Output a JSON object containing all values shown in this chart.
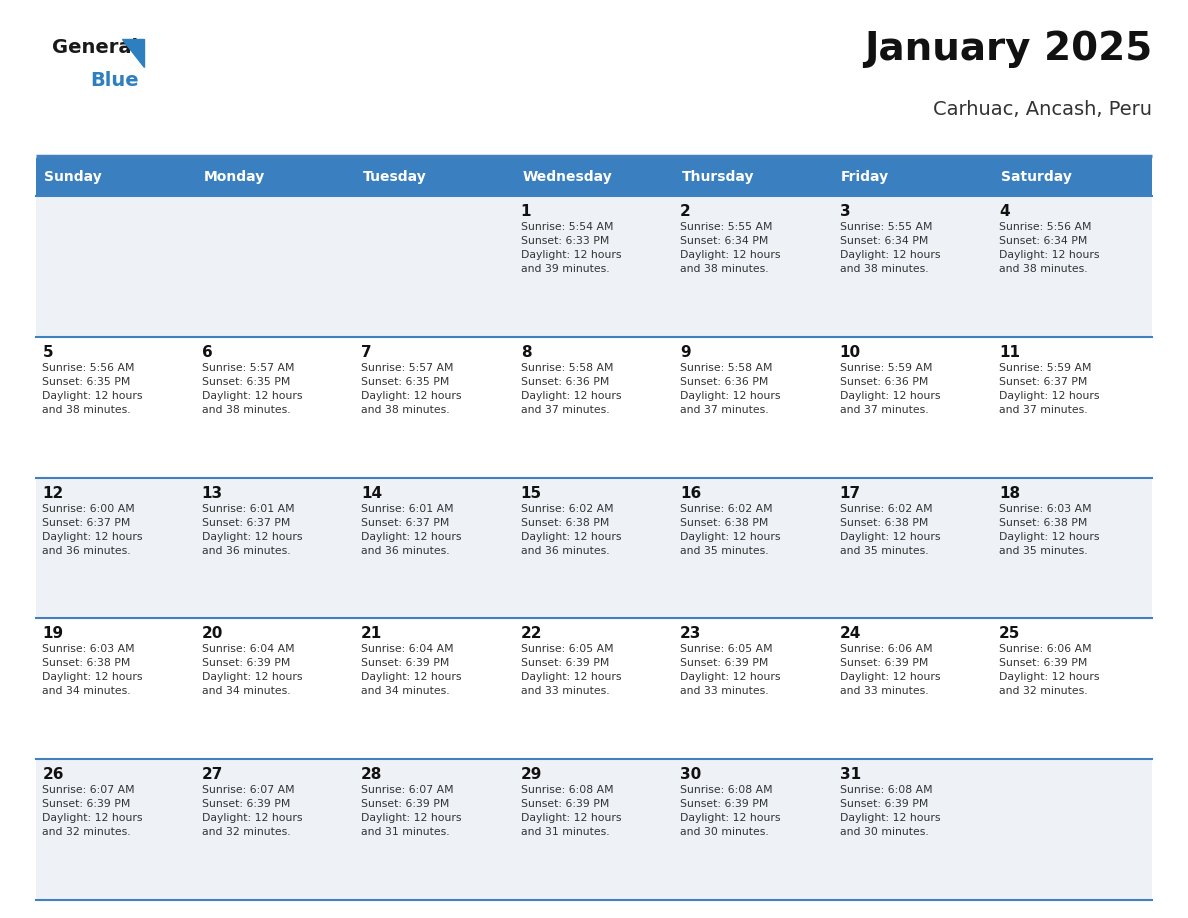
{
  "title": "January 2025",
  "subtitle": "Carhuac, Ancash, Peru",
  "days_of_week": [
    "Sunday",
    "Monday",
    "Tuesday",
    "Wednesday",
    "Thursday",
    "Friday",
    "Saturday"
  ],
  "header_bg": "#3a7fbf",
  "header_text": "#ffffff",
  "row_bg_odd": "#eef2f7",
  "row_bg_even": "#ffffff",
  "divider_color": "#4080bf",
  "cell_text_color": "#333333",
  "day_num_color": "#111111",
  "title_color": "#111111",
  "subtitle_color": "#333333",
  "logo_black": "#1a1a1a",
  "logo_blue": "#2e7fbf",
  "calendar_data": [
    [
      "",
      "",
      "",
      "1\nSunrise: 5:54 AM\nSunset: 6:33 PM\nDaylight: 12 hours\nand 39 minutes.",
      "2\nSunrise: 5:55 AM\nSunset: 6:34 PM\nDaylight: 12 hours\nand 38 minutes.",
      "3\nSunrise: 5:55 AM\nSunset: 6:34 PM\nDaylight: 12 hours\nand 38 minutes.",
      "4\nSunrise: 5:56 AM\nSunset: 6:34 PM\nDaylight: 12 hours\nand 38 minutes."
    ],
    [
      "5\nSunrise: 5:56 AM\nSunset: 6:35 PM\nDaylight: 12 hours\nand 38 minutes.",
      "6\nSunrise: 5:57 AM\nSunset: 6:35 PM\nDaylight: 12 hours\nand 38 minutes.",
      "7\nSunrise: 5:57 AM\nSunset: 6:35 PM\nDaylight: 12 hours\nand 38 minutes.",
      "8\nSunrise: 5:58 AM\nSunset: 6:36 PM\nDaylight: 12 hours\nand 37 minutes.",
      "9\nSunrise: 5:58 AM\nSunset: 6:36 PM\nDaylight: 12 hours\nand 37 minutes.",
      "10\nSunrise: 5:59 AM\nSunset: 6:36 PM\nDaylight: 12 hours\nand 37 minutes.",
      "11\nSunrise: 5:59 AM\nSunset: 6:37 PM\nDaylight: 12 hours\nand 37 minutes."
    ],
    [
      "12\nSunrise: 6:00 AM\nSunset: 6:37 PM\nDaylight: 12 hours\nand 36 minutes.",
      "13\nSunrise: 6:01 AM\nSunset: 6:37 PM\nDaylight: 12 hours\nand 36 minutes.",
      "14\nSunrise: 6:01 AM\nSunset: 6:37 PM\nDaylight: 12 hours\nand 36 minutes.",
      "15\nSunrise: 6:02 AM\nSunset: 6:38 PM\nDaylight: 12 hours\nand 36 minutes.",
      "16\nSunrise: 6:02 AM\nSunset: 6:38 PM\nDaylight: 12 hours\nand 35 minutes.",
      "17\nSunrise: 6:02 AM\nSunset: 6:38 PM\nDaylight: 12 hours\nand 35 minutes.",
      "18\nSunrise: 6:03 AM\nSunset: 6:38 PM\nDaylight: 12 hours\nand 35 minutes."
    ],
    [
      "19\nSunrise: 6:03 AM\nSunset: 6:38 PM\nDaylight: 12 hours\nand 34 minutes.",
      "20\nSunrise: 6:04 AM\nSunset: 6:39 PM\nDaylight: 12 hours\nand 34 minutes.",
      "21\nSunrise: 6:04 AM\nSunset: 6:39 PM\nDaylight: 12 hours\nand 34 minutes.",
      "22\nSunrise: 6:05 AM\nSunset: 6:39 PM\nDaylight: 12 hours\nand 33 minutes.",
      "23\nSunrise: 6:05 AM\nSunset: 6:39 PM\nDaylight: 12 hours\nand 33 minutes.",
      "24\nSunrise: 6:06 AM\nSunset: 6:39 PM\nDaylight: 12 hours\nand 33 minutes.",
      "25\nSunrise: 6:06 AM\nSunset: 6:39 PM\nDaylight: 12 hours\nand 32 minutes."
    ],
    [
      "26\nSunrise: 6:07 AM\nSunset: 6:39 PM\nDaylight: 12 hours\nand 32 minutes.",
      "27\nSunrise: 6:07 AM\nSunset: 6:39 PM\nDaylight: 12 hours\nand 32 minutes.",
      "28\nSunrise: 6:07 AM\nSunset: 6:39 PM\nDaylight: 12 hours\nand 31 minutes.",
      "29\nSunrise: 6:08 AM\nSunset: 6:39 PM\nDaylight: 12 hours\nand 31 minutes.",
      "30\nSunrise: 6:08 AM\nSunset: 6:39 PM\nDaylight: 12 hours\nand 30 minutes.",
      "31\nSunrise: 6:08 AM\nSunset: 6:39 PM\nDaylight: 12 hours\nand 30 minutes.",
      ""
    ]
  ]
}
